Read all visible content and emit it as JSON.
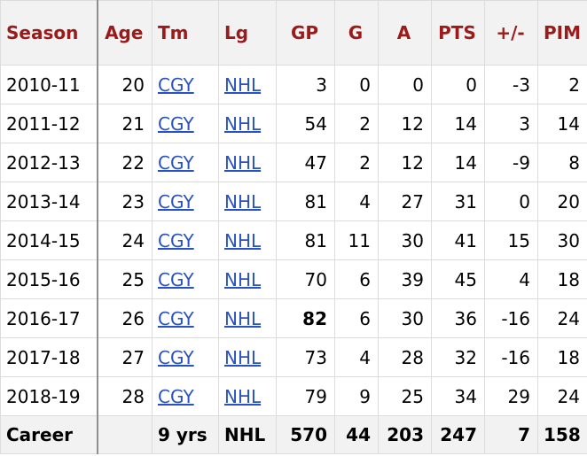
{
  "headers": [
    "Season",
    "Age",
    "Tm",
    "Lg",
    "GP",
    "G",
    "A",
    "PTS",
    "+/-",
    "PIM"
  ],
  "rows": [
    {
      "season": "2010-11",
      "age": "20",
      "tm": "CGY",
      "lg": "NHL",
      "gp": "3",
      "g": "0",
      "a": "0",
      "pts": "0",
      "pm": "-3",
      "pim": "2"
    },
    {
      "season": "2011-12",
      "age": "21",
      "tm": "CGY",
      "lg": "NHL",
      "gp": "54",
      "g": "2",
      "a": "12",
      "pts": "14",
      "pm": "3",
      "pim": "14"
    },
    {
      "season": "2012-13",
      "age": "22",
      "tm": "CGY",
      "lg": "NHL",
      "gp": "47",
      "g": "2",
      "a": "12",
      "pts": "14",
      "pm": "-9",
      "pim": "8"
    },
    {
      "season": "2013-14",
      "age": "23",
      "tm": "CGY",
      "lg": "NHL",
      "gp": "81",
      "g": "4",
      "a": "27",
      "pts": "31",
      "pm": "0",
      "pim": "20"
    },
    {
      "season": "2014-15",
      "age": "24",
      "tm": "CGY",
      "lg": "NHL",
      "gp": "81",
      "g": "11",
      "a": "30",
      "pts": "41",
      "pm": "15",
      "pim": "30"
    },
    {
      "season": "2015-16",
      "age": "25",
      "tm": "CGY",
      "lg": "NHL",
      "gp": "70",
      "g": "6",
      "a": "39",
      "pts": "45",
      "pm": "4",
      "pim": "18"
    },
    {
      "season": "2016-17",
      "age": "26",
      "tm": "CGY",
      "lg": "NHL",
      "gp": "82",
      "g": "6",
      "a": "30",
      "pts": "36",
      "pm": "-16",
      "pim": "24"
    },
    {
      "season": "2017-18",
      "age": "27",
      "tm": "CGY",
      "lg": "NHL",
      "gp": "73",
      "g": "4",
      "a": "28",
      "pts": "32",
      "pm": "-16",
      "pim": "18"
    },
    {
      "season": "2018-19",
      "age": "28",
      "tm": "CGY",
      "lg": "NHL",
      "gp": "79",
      "g": "9",
      "a": "25",
      "pts": "34",
      "pm": "29",
      "pim": "24"
    }
  ],
  "career": {
    "label": "Career",
    "age": "",
    "tm": "9 yrs",
    "lg": "NHL",
    "gp": "570",
    "g": "44",
    "a": "203",
    "pts": "247",
    "pm": "7",
    "pim": "158"
  },
  "colors": {
    "header_text": "#9b1b1b",
    "link": "#2a52be",
    "header_bg": "#f2f2f2"
  }
}
